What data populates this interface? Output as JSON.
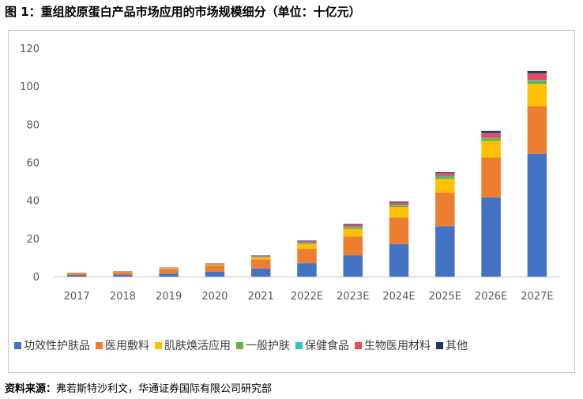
{
  "figure": {
    "title": "图 1：重组胶原蛋白产品市场应用的市场规模细分（单位：十亿元）",
    "source_label": "资料来源：",
    "source_text": "弗若斯特沙利文，华通证券国际有限公司研究部"
  },
  "chart_data": {
    "type": "bar",
    "stacked": true,
    "title": "",
    "xlabel": "",
    "ylabel": "",
    "ylim": [
      0,
      120
    ],
    "yticks": [
      0,
      20,
      40,
      60,
      80,
      100,
      120
    ],
    "grid": false,
    "legend_position": "bottom",
    "categories": [
      "2017",
      "2018",
      "2019",
      "2020",
      "2021",
      "2022E",
      "2023E",
      "2024E",
      "2025E",
      "2026E",
      "2027E"
    ],
    "series": [
      {
        "name": "功效性护肤品",
        "color": "#4472C4",
        "values": [
          0.8,
          1.0,
          1.5,
          2.5,
          4.2,
          7.0,
          11.0,
          17.0,
          26.5,
          41.5,
          64.5
        ]
      },
      {
        "name": "医用敷料",
        "color": "#ED7D31",
        "values": [
          0.9,
          1.3,
          2.5,
          3.3,
          4.8,
          7.5,
          10.0,
          14.0,
          17.5,
          21.0,
          25.0
        ]
      },
      {
        "name": "肌肤焕活应用",
        "color": "#FFC000",
        "values": [
          0.1,
          0.2,
          0.3,
          0.4,
          1.0,
          2.6,
          4.0,
          5.5,
          7.3,
          8.8,
          11.7
        ]
      },
      {
        "name": "一般护肤",
        "color": "#70AD47",
        "values": [
          0.05,
          0.1,
          0.1,
          0.2,
          0.3,
          0.5,
          0.8,
          0.8,
          1.0,
          1.2,
          1.5
        ]
      },
      {
        "name": "保健食品",
        "color": "#2EC4B6",
        "values": [
          0.02,
          0.05,
          0.05,
          0.1,
          0.2,
          0.3,
          0.4,
          0.4,
          0.5,
          0.5,
          0.6
        ]
      },
      {
        "name": "生物医用材料",
        "color": "#E84A5F",
        "values": [
          0.1,
          0.15,
          0.2,
          0.3,
          0.4,
          0.7,
          1.0,
          1.2,
          1.5,
          2.5,
          3.5
        ]
      },
      {
        "name": "其他",
        "color": "#1F3864",
        "values": [
          0.05,
          0.05,
          0.1,
          0.1,
          0.2,
          0.3,
          0.4,
          0.5,
          0.5,
          1.0,
          1.2
        ]
      }
    ]
  }
}
